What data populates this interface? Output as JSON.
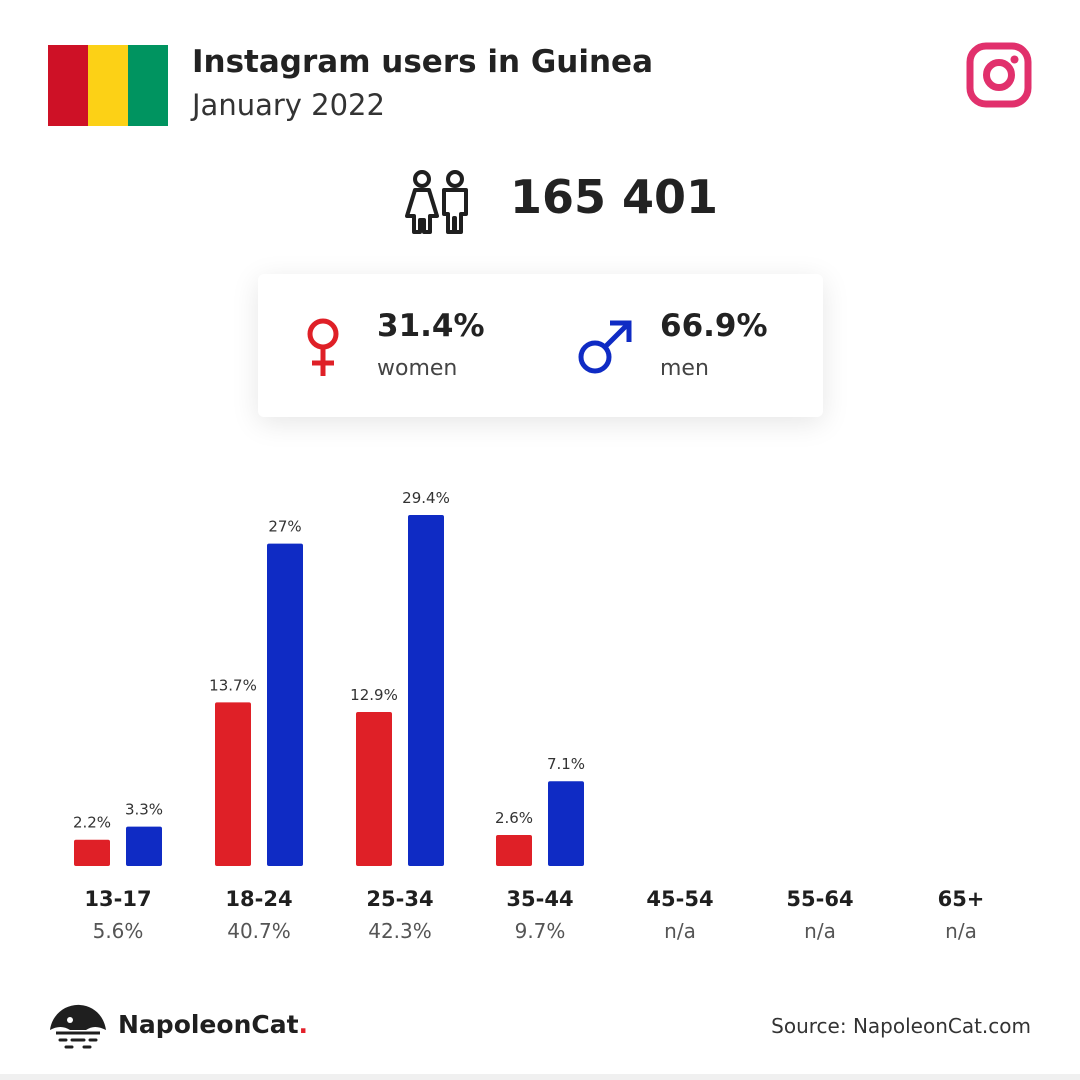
{
  "header": {
    "title": "Instagram users in Guinea",
    "subtitle": "January 2022",
    "flag_colors": [
      "#ce1126",
      "#fcd116",
      "#009460"
    ],
    "brand_icon": "instagram-icon",
    "brand_color": "#e1306c"
  },
  "total": {
    "icon": "people-icon",
    "value": "165 401"
  },
  "gender": {
    "women": {
      "value": "31.4%",
      "label": "women",
      "icon": "female-symbol-icon",
      "color": "#df2027"
    },
    "men": {
      "value": "66.9%",
      "label": "men",
      "icon": "male-symbol-icon",
      "color": "#0f2bc4"
    }
  },
  "chart_data": {
    "type": "bar",
    "categories": [
      "13-17",
      "18-24",
      "25-34",
      "35-44",
      "45-54",
      "55-64",
      "65+"
    ],
    "category_totals": [
      "5.6%",
      "40.7%",
      "42.3%",
      "9.7%",
      "n/a",
      "n/a",
      "n/a"
    ],
    "series": [
      {
        "values": [
          2.2,
          13.7,
          12.9,
          2.6,
          null,
          null,
          null
        ],
        "labels": [
          "2.2%",
          "13.7%",
          "12.9%",
          "2.6%",
          "",
          "",
          ""
        ],
        "color": "#df2027"
      },
      {
        "values": [
          3.3,
          27,
          29.4,
          7.1,
          null,
          null,
          null
        ],
        "labels": [
          "3.3%",
          "27%",
          "29.4%",
          "7.1%",
          "",
          "",
          ""
        ],
        "color": "#0f2bc4"
      }
    ],
    "grid": false,
    "legend": "none"
  },
  "footer": {
    "brand": "NapoleonCat",
    "brand_dot": ".",
    "logo": "napoleoncat-logo-icon",
    "source": "Source: NapoleonCat.com"
  }
}
